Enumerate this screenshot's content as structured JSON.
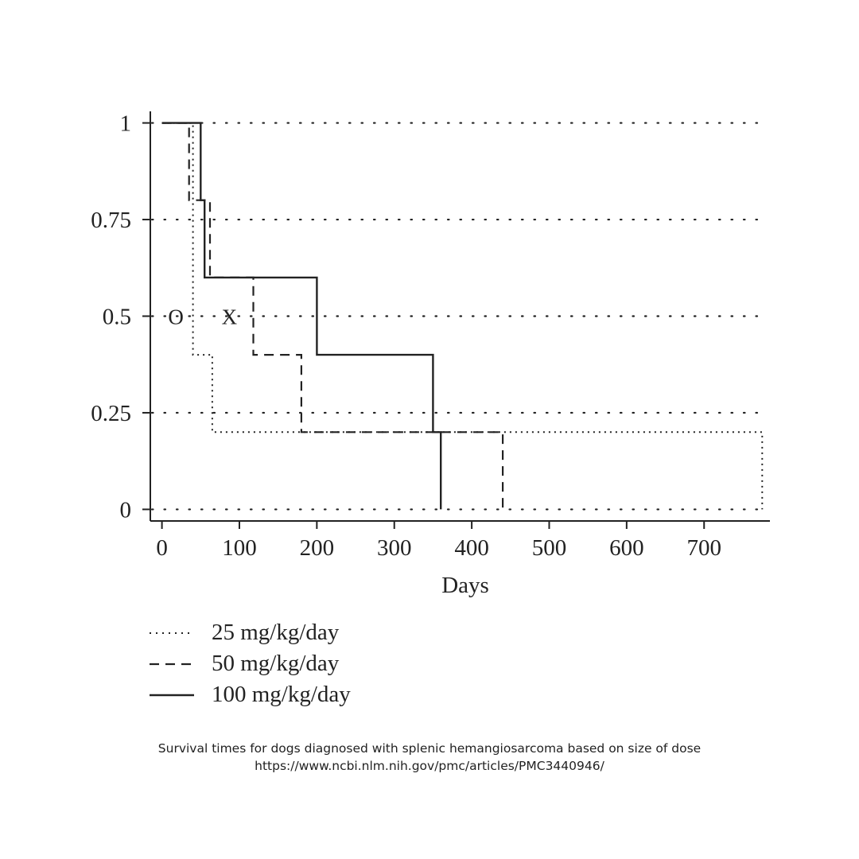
{
  "chart_data": {
    "type": "line",
    "step": true,
    "title": "",
    "xlabel": "Days",
    "ylabel": "",
    "xlim": [
      -15,
      785
    ],
    "ylim": [
      -0.03,
      1.03
    ],
    "x_ticks": [
      0,
      100,
      200,
      300,
      400,
      500,
      600,
      700
    ],
    "x_tick_labels": [
      "0",
      "100",
      "200",
      "300",
      "400",
      "500",
      "600",
      "700"
    ],
    "y_ticks": [
      0,
      0.25,
      0.5,
      0.75,
      1
    ],
    "y_tick_labels": [
      "0",
      "0.25",
      "0.5",
      "0.75",
      "1"
    ],
    "grid": "horizontal dotted",
    "legend_position": "bottom-left",
    "series": [
      {
        "name": "25 mg/kg/day",
        "style": "dotted",
        "color": "#222222",
        "x": [
          0,
          40,
          40,
          65,
          65,
          775,
          775
        ],
        "y": [
          1,
          1,
          0.4,
          0.4,
          0.2,
          0.2,
          0
        ]
      },
      {
        "name": "50 mg/kg/day",
        "style": "dashed",
        "color": "#222222",
        "x": [
          0,
          35,
          35,
          62,
          62,
          118,
          118,
          180,
          180,
          440,
          440
        ],
        "y": [
          1,
          1,
          0.8,
          0.8,
          0.6,
          0.6,
          0.4,
          0.4,
          0.2,
          0.2,
          0
        ]
      },
      {
        "name": "100 mg/kg/day",
        "style": "solid",
        "color": "#222222",
        "x": [
          0,
          50,
          50,
          55,
          55,
          200,
          200,
          350,
          350,
          360,
          360
        ],
        "y": [
          1,
          1,
          0.8,
          0.8,
          0.6,
          0.6,
          0.4,
          0.4,
          0.2,
          0.2,
          0
        ]
      }
    ],
    "annotations": [
      {
        "text": "O",
        "x": 18,
        "y": 0.5
      },
      {
        "text": "X",
        "x": 87,
        "y": 0.5
      }
    ]
  },
  "caption": {
    "line1": "Survival times for dogs diagnosed with splenic hemangiosarcoma based on size of dose",
    "line2": "https://www.ncbi.nlm.nih.gov/pmc/articles/PMC3440946/"
  }
}
